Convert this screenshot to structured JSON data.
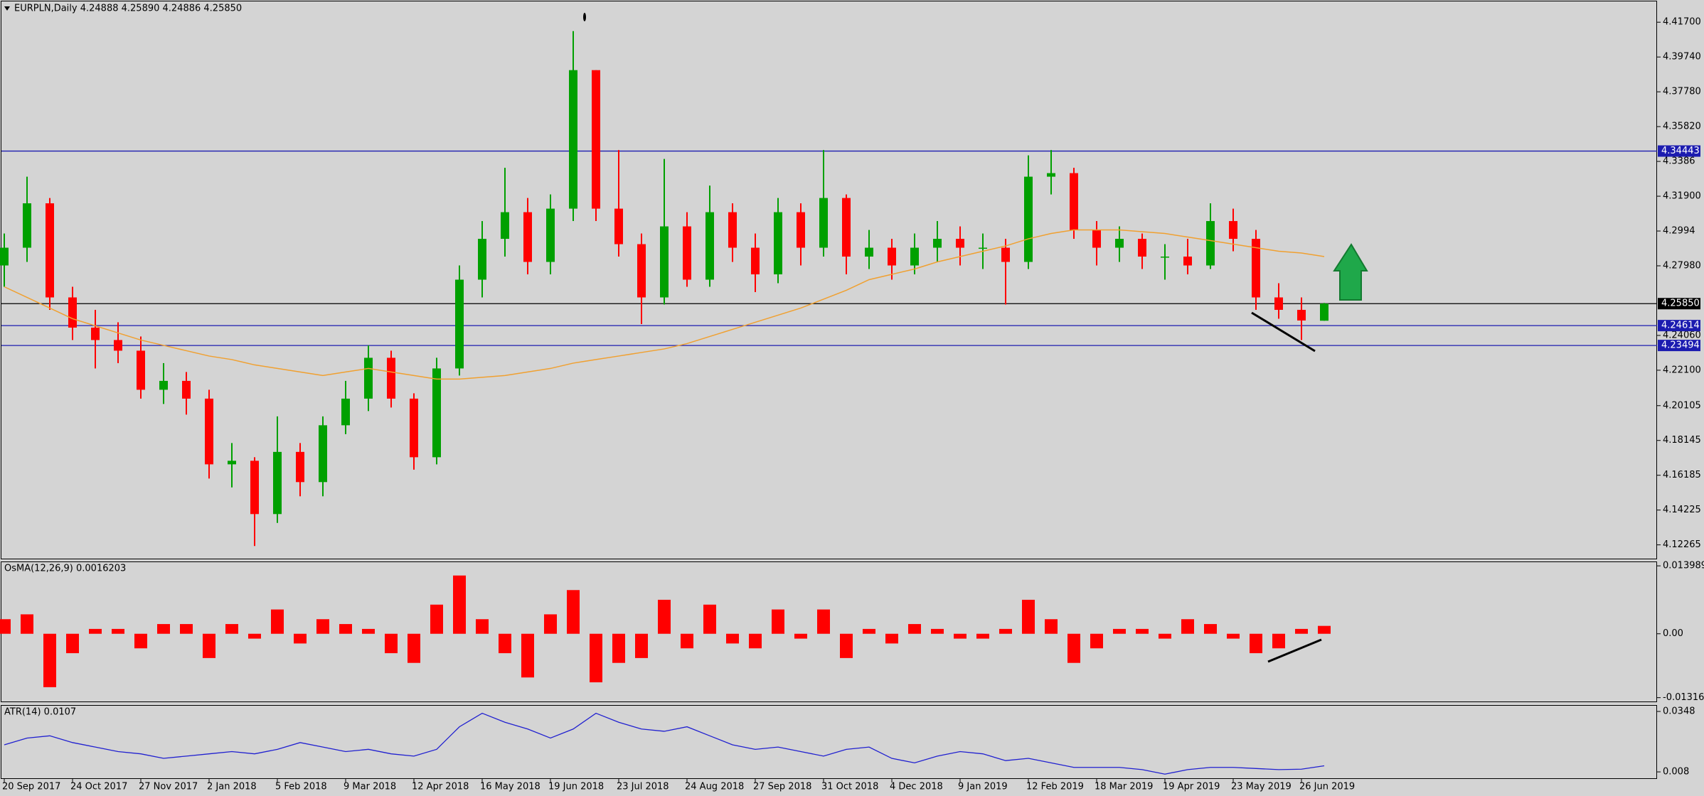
{
  "chart_data": [
    {
      "type": "candlestick",
      "title": "EURPLN,Daily  4.24888 4.25890 4.24886 4.25850",
      "categories": [
        "20 Sep 2017",
        null,
        null,
        "24 Oct 2017",
        null,
        null,
        "27 Nov 2017",
        null,
        null,
        "2 Jan 2018",
        null,
        null,
        "5 Feb 2018",
        null,
        null,
        "9 Mar 2018",
        null,
        null,
        "12 Apr 2018",
        null,
        null,
        "16 May 2018",
        null,
        null,
        "19 Jun 2018",
        null,
        null,
        "23 Jul 2018",
        null,
        null,
        "24 Aug 2018",
        null,
        null,
        "27 Sep 2018",
        null,
        null,
        "31 Oct 2018",
        null,
        null,
        "4 Dec 2018",
        null,
        null,
        "9 Jan 2019",
        null,
        null,
        "12 Feb 2019",
        null,
        null,
        "18 Mar 2019",
        null,
        null,
        "19 Apr 2019",
        null,
        null,
        "23 May 2019",
        null,
        null,
        "26 Jun 2019",
        null
      ],
      "open": [
        4.28,
        4.29,
        4.315,
        4.262,
        4.245,
        4.238,
        4.232,
        4.21,
        4.215,
        4.205,
        4.168,
        4.17,
        4.14,
        4.175,
        4.158,
        4.19,
        4.205,
        4.228,
        4.205,
        4.172,
        4.222,
        4.272,
        4.295,
        4.31,
        4.282,
        4.312,
        4.39,
        4.312,
        4.292,
        4.262,
        4.302,
        4.272,
        4.31,
        4.29,
        4.275,
        4.31,
        4.29,
        4.318,
        4.285,
        4.29,
        4.28,
        4.29,
        4.295,
        4.29,
        4.29,
        4.282,
        4.33,
        4.332,
        4.3,
        4.29,
        4.295,
        4.285,
        4.285,
        4.28,
        4.305,
        4.295,
        4.262,
        4.255,
        4.24888
      ],
      "high": [
        4.298,
        4.33,
        4.318,
        4.268,
        4.255,
        4.248,
        4.24,
        4.225,
        4.22,
        4.21,
        4.18,
        4.172,
        4.195,
        4.18,
        4.195,
        4.215,
        4.235,
        4.232,
        4.208,
        4.228,
        4.28,
        4.305,
        4.335,
        4.318,
        4.32,
        4.412,
        4.39,
        4.345,
        4.298,
        4.34,
        4.31,
        4.325,
        4.315,
        4.298,
        4.318,
        4.315,
        4.345,
        4.32,
        4.3,
        4.295,
        4.298,
        4.305,
        4.302,
        4.298,
        4.295,
        4.342,
        4.345,
        4.335,
        4.305,
        4.302,
        4.298,
        4.292,
        4.295,
        4.315,
        4.312,
        4.3,
        4.27,
        4.262,
        4.2589
      ],
      "low": [
        4.268,
        4.282,
        4.255,
        4.238,
        4.222,
        4.225,
        4.205,
        4.202,
        4.196,
        4.16,
        4.155,
        4.122,
        4.135,
        4.15,
        4.15,
        4.185,
        4.198,
        4.2,
        4.165,
        4.168,
        4.218,
        4.262,
        4.285,
        4.275,
        4.275,
        4.305,
        4.305,
        4.285,
        4.247,
        4.258,
        4.268,
        4.268,
        4.282,
        4.265,
        4.27,
        4.28,
        4.285,
        4.275,
        4.278,
        4.272,
        4.275,
        4.282,
        4.28,
        4.278,
        4.258,
        4.278,
        4.32,
        4.295,
        4.28,
        4.282,
        4.278,
        4.272,
        4.275,
        4.278,
        4.288,
        4.255,
        4.25,
        4.238,
        4.24886
      ],
      "close": [
        4.29,
        4.315,
        4.262,
        4.245,
        4.238,
        4.232,
        4.21,
        4.215,
        4.205,
        4.168,
        4.17,
        4.14,
        4.175,
        4.158,
        4.19,
        4.205,
        4.228,
        4.205,
        4.172,
        4.222,
        4.272,
        4.295,
        4.31,
        4.282,
        4.312,
        4.39,
        4.312,
        4.292,
        4.262,
        4.302,
        4.272,
        4.31,
        4.29,
        4.275,
        4.31,
        4.29,
        4.318,
        4.285,
        4.29,
        4.28,
        4.29,
        4.295,
        4.29,
        4.29,
        4.282,
        4.33,
        4.332,
        4.3,
        4.29,
        4.295,
        4.285,
        4.285,
        4.28,
        4.305,
        4.295,
        4.262,
        4.255,
        4.249,
        4.2585
      ],
      "up_color": "#00a000",
      "down_color": "#ff0000",
      "moving_average": {
        "color": "#f0a030",
        "values": [
          4.268,
          4.262,
          4.256,
          4.25,
          4.246,
          4.242,
          4.238,
          4.235,
          4.232,
          4.229,
          4.227,
          4.224,
          4.222,
          4.22,
          4.218,
          4.22,
          4.222,
          4.22,
          4.218,
          4.216,
          4.216,
          4.217,
          4.218,
          4.22,
          4.222,
          4.225,
          4.227,
          4.229,
          4.231,
          4.233,
          4.236,
          4.24,
          4.244,
          4.248,
          4.252,
          4.256,
          4.261,
          4.266,
          4.272,
          4.275,
          4.278,
          4.282,
          4.285,
          4.288,
          4.291,
          4.295,
          4.298,
          4.3,
          4.3,
          4.3,
          4.299,
          4.298,
          4.296,
          4.294,
          4.292,
          4.29,
          4.288,
          4.287,
          4.285
        ]
      },
      "levels": [
        {
          "value": 4.34443,
          "color": "#1c1cb0"
        },
        {
          "value": 4.2585,
          "label": "4.25850",
          "color": "#000000"
        },
        {
          "value": 4.24614,
          "color": "#1c1cb0"
        },
        {
          "value": 4.23494,
          "color": "#1c1cb0"
        }
      ],
      "ylim": [
        4.1153,
        4.4283
      ],
      "yticks": [
        {
          "value": 4.417,
          "label": "4.41700"
        },
        {
          "value": 4.3974,
          "label": "4.39740"
        },
        {
          "value": 4.3778,
          "label": "4.37780"
        },
        {
          "value": 4.3582,
          "label": "4.35820"
        },
        4.3386,
        {
          "value": 4.319,
          "label": "4.31900"
        },
        4.2994,
        {
          "value": 4.2798,
          "label": "4.27980"
        },
        {
          "value": 4.2406,
          "label": "4.24060"
        },
        {
          "value": 4.221,
          "label": "4.22100"
        },
        4.20105,
        4.18145,
        4.16185,
        4.14225,
        4.12265
      ]
    },
    {
      "type": "bar",
      "title": "OsMA(12,26,9) 0.0016203",
      "color": "#ff0000",
      "values": [
        0.003,
        0.004,
        -0.011,
        -0.004,
        0.001,
        0.001,
        -0.003,
        0.002,
        0.002,
        -0.005,
        0.002,
        -0.001,
        0.005,
        -0.002,
        0.003,
        0.002,
        0.001,
        -0.004,
        -0.006,
        0.006,
        0.012,
        0.003,
        -0.004,
        -0.009,
        0.004,
        0.009,
        -0.01,
        -0.006,
        -0.005,
        0.007,
        -0.003,
        0.006,
        -0.002,
        -0.003,
        0.005,
        -0.001,
        0.005,
        -0.005,
        0.001,
        -0.002,
        0.002,
        0.001,
        -0.001,
        -0.001,
        0.001,
        0.007,
        0.003,
        -0.006,
        -0.003,
        0.001,
        0.001,
        -0.001,
        0.003,
        0.002,
        -0.001,
        -0.004,
        -0.003,
        0.001,
        0.0016203
      ],
      "ylim": [
        -0.0138,
        0.0146
      ],
      "yticks": [
        0.0139895,
        {
          "value": 0,
          "label": "0.00"
        },
        -0.013162
      ]
    },
    {
      "type": "line",
      "title": "ATR(14) 0.0107",
      "color": "#2020d0",
      "values": [
        0.02,
        0.023,
        0.024,
        0.021,
        0.019,
        0.017,
        0.016,
        0.014,
        0.015,
        0.016,
        0.017,
        0.016,
        0.018,
        0.021,
        0.019,
        0.017,
        0.018,
        0.016,
        0.015,
        0.018,
        0.028,
        0.034,
        0.03,
        0.027,
        0.023,
        0.027,
        0.034,
        0.03,
        0.027,
        0.026,
        0.028,
        0.024,
        0.02,
        0.018,
        0.019,
        0.017,
        0.015,
        0.018,
        0.019,
        0.014,
        0.012,
        0.015,
        0.017,
        0.016,
        0.013,
        0.014,
        0.012,
        0.01,
        0.01,
        0.01,
        0.009,
        0.007,
        0.009,
        0.01,
        0.01,
        0.0095,
        0.009,
        0.0092,
        0.0107
      ],
      "ylim": [
        0.0055,
        0.0367
      ],
      "yticks": [
        0.0348,
        0.008
      ]
    }
  ]
}
